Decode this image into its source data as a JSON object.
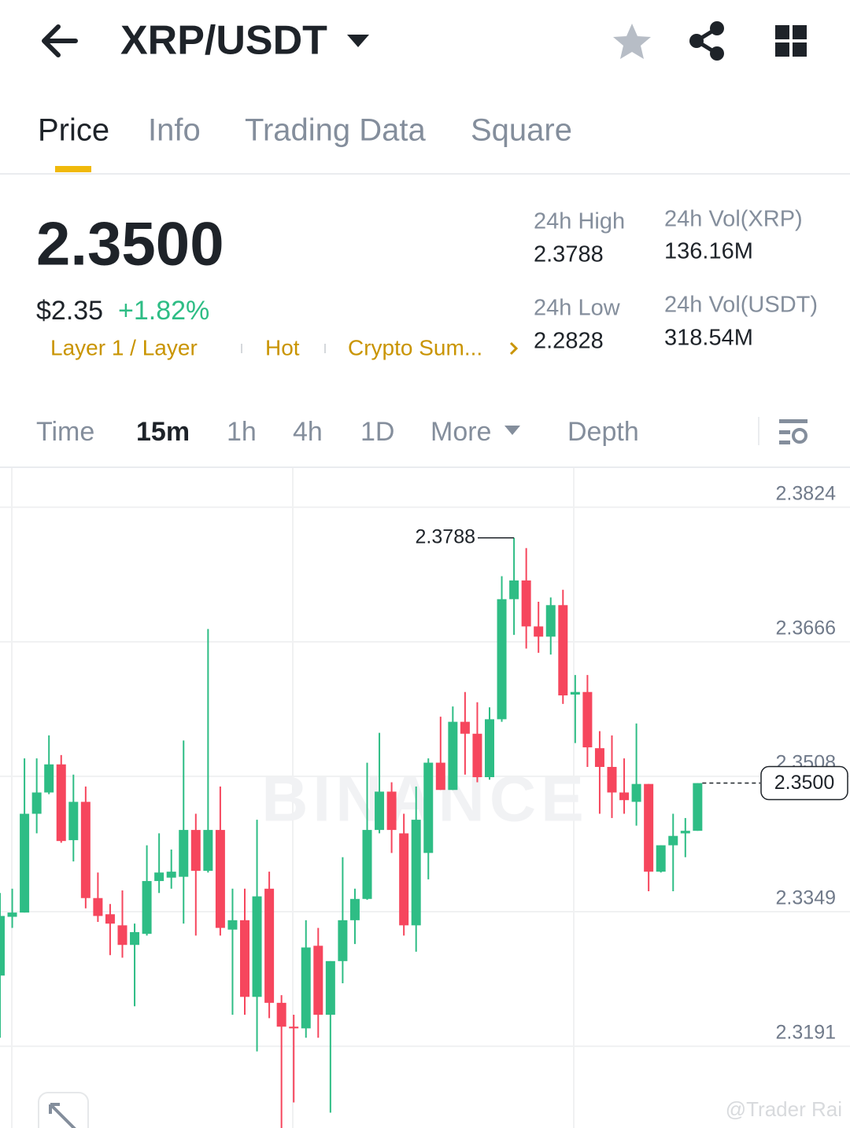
{
  "header": {
    "title": "XRP/USDT"
  },
  "tabs": [
    "Price",
    "Info",
    "Trading Data",
    "Square"
  ],
  "price": {
    "last": "2.3500",
    "usd": "$2.35",
    "change": "+1.82%",
    "tags": [
      "Layer 1 / Layer",
      "Hot",
      "Crypto Sum..."
    ]
  },
  "stats": [
    {
      "label": "24h High",
      "value": "2.3788"
    },
    {
      "label": "24h Vol(XRP)",
      "value": "136.16M"
    },
    {
      "label": "24h Low",
      "value": "2.2828"
    },
    {
      "label": "24h Vol(USDT)",
      "value": "318.54M"
    }
  ],
  "intervals": [
    "Time",
    "15m",
    "1h",
    "4h",
    "1D",
    "More",
    "Depth"
  ],
  "chart_data": {
    "type": "candlestick",
    "open": [
      2.3274,
      2.3343,
      2.3348,
      2.3464,
      2.3489,
      2.3522,
      2.3433,
      2.3478,
      2.3365,
      2.3346,
      2.3333,
      2.331,
      2.3323,
      2.3385,
      2.3389,
      2.339,
      2.3445,
      2.3397,
      2.3445,
      2.3328,
      2.3339,
      2.3249,
      2.3376,
      2.3242,
      2.3214,
      2.3212,
      2.3309,
      2.3228,
      2.3291,
      2.3339,
      2.3364,
      2.3445,
      2.349,
      2.3441,
      2.3333,
      2.3418,
      2.3524,
      2.3492,
      2.3572,
      2.3558,
      2.3507,
      2.3575,
      2.3716,
      2.3738,
      2.3684,
      2.3672,
      2.3709,
      2.3604,
      2.3607,
      2.3541,
      2.3519,
      2.3489,
      2.3478,
      2.3499,
      2.3396,
      2.3427,
      2.3441,
      2.3444
    ],
    "high": [
      2.3371,
      2.3376,
      2.3529,
      2.3529,
      2.3556,
      2.3533,
      2.351,
      2.3496,
      2.3395,
      2.3358,
      2.3374,
      2.3335,
      2.3427,
      2.3441,
      2.3422,
      2.355,
      2.3464,
      2.3681,
      2.3496,
      2.3376,
      2.3376,
      2.3457,
      2.3396,
      2.3251,
      2.3228,
      2.3339,
      2.333,
      2.3291,
      2.3413,
      2.3376,
      2.3524,
      2.3559,
      2.3501,
      2.3464,
      2.3496,
      2.3529,
      2.3578,
      2.359,
      2.3607,
      2.3595,
      2.3589,
      2.3743,
      2.3788,
      2.3776,
      2.3713,
      2.3718,
      2.3727,
      2.3627,
      2.3627,
      2.3561,
      2.3556,
      2.3529,
      2.357,
      2.3499,
      2.3427,
      2.3464,
      2.3459,
      2.35
    ],
    "low": [
      2.3201,
      2.333,
      2.3348,
      2.3441,
      2.3487,
      2.343,
      2.3408,
      2.3353,
      2.3337,
      2.3298,
      2.3295,
      2.3238,
      2.3321,
      2.3371,
      2.3376,
      2.3335,
      2.3321,
      2.3395,
      2.3321,
      2.3228,
      2.3228,
      2.3185,
      2.3224,
      2.3095,
      2.3125,
      2.3201,
      2.3201,
      2.3113,
      2.3265,
      2.3311,
      2.3363,
      2.3441,
      2.3418,
      2.3321,
      2.3302,
      2.3387,
      2.3492,
      2.3492,
      2.351,
      2.3501,
      2.3504,
      2.3572,
      2.3674,
      2.3658,
      2.3653,
      2.3651,
      2.3593,
      2.3547,
      2.3519,
      2.3464,
      2.3459,
      2.3464,
      2.345,
      2.3373,
      2.3395,
      2.3373,
      2.3413,
      2.3444
    ],
    "close": [
      2.3344,
      2.3348,
      2.3464,
      2.3489,
      2.3522,
      2.3432,
      2.3478,
      2.3365,
      2.3344,
      2.3335,
      2.331,
      2.3325,
      2.3385,
      2.3395,
      2.3396,
      2.3445,
      2.3397,
      2.3445,
      2.333,
      2.3339,
      2.3249,
      2.3367,
      2.3242,
      2.3214,
      2.3212,
      2.3307,
      2.3228,
      2.3291,
      2.3339,
      2.3364,
      2.3445,
      2.349,
      2.3445,
      2.3333,
      2.3457,
      2.3524,
      2.3492,
      2.3572,
      2.3558,
      2.3507,
      2.3575,
      2.3716,
      2.3738,
      2.3684,
      2.3672,
      2.3709,
      2.3603,
      2.3607,
      2.3542,
      2.3519,
      2.3489,
      2.348,
      2.3499,
      2.3396,
      2.3427,
      2.3438,
      2.3444,
      2.35
    ],
    "up_color": "#2ebd85",
    "down_color": "#f6465d",
    "ylim": [
      2.3095,
      2.387
    ],
    "yticks": [
      2.3824,
      2.3666,
      2.3508,
      2.3349,
      2.3191
    ],
    "grid": true,
    "max_label": 2.3788,
    "last_price": {
      "value": 2.35,
      "label": "2.3500"
    },
    "watermark": "BINANCE"
  },
  "watermark": "@Trader Rai"
}
